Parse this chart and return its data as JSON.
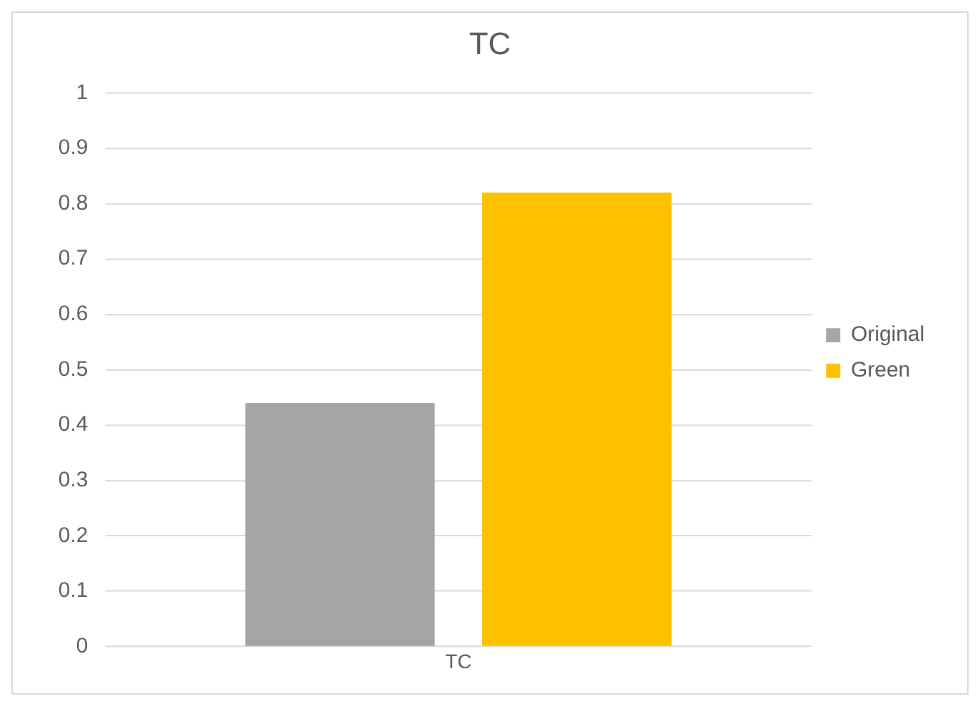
{
  "chart_data": {
    "type": "bar",
    "title": "TC",
    "categories": [
      "TC"
    ],
    "series": [
      {
        "name": "Original",
        "color": "#a5a5a5",
        "values": [
          0.44
        ]
      },
      {
        "name": "Green",
        "color": "#ffc000",
        "values": [
          0.82
        ]
      }
    ],
    "ylim": [
      0,
      1
    ],
    "yticks": [
      0,
      0.1,
      0.2,
      0.3,
      0.4,
      0.5,
      0.6,
      0.7,
      0.8,
      0.9,
      1
    ],
    "grid": "y",
    "legend": "right"
  }
}
